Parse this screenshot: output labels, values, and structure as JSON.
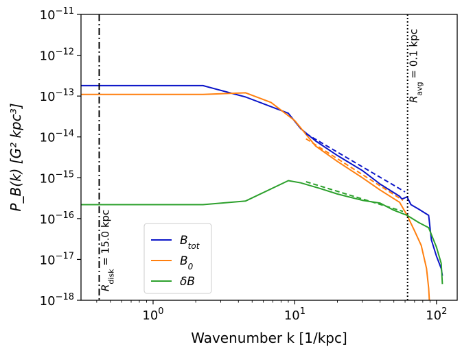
{
  "chart_data": {
    "type": "line",
    "title": "",
    "xlabel": "Wavenumber k [1/kpc]",
    "ylabel": "P_B(k) [G² kpc³]",
    "xscale": "log",
    "yscale": "log",
    "xlim": [
      0.31,
      140
    ],
    "ylim": [
      1e-18,
      1e-11
    ],
    "grid": false,
    "legend_position": "lower-left",
    "x_ticks": [
      {
        "value": 1,
        "base": "10",
        "exp": "0"
      },
      {
        "value": 10,
        "base": "10",
        "exp": "1"
      },
      {
        "value": 100,
        "base": "10",
        "exp": "2"
      }
    ],
    "y_ticks": [
      {
        "value": 1e-11,
        "base": "10",
        "exp": "−11"
      },
      {
        "value": 1e-12,
        "base": "10",
        "exp": "−12"
      },
      {
        "value": 1e-13,
        "base": "10",
        "exp": "−13"
      },
      {
        "value": 1e-14,
        "base": "10",
        "exp": "−14"
      },
      {
        "value": 1e-15,
        "base": "10",
        "exp": "−15"
      },
      {
        "value": 1e-16,
        "base": "10",
        "exp": "−16"
      },
      {
        "value": 1e-17,
        "base": "10",
        "exp": "−17"
      },
      {
        "value": 1e-18,
        "base": "10",
        "exp": "−18"
      }
    ],
    "series": [
      {
        "name": "B_tot",
        "label_main": "B",
        "label_sub": "tot",
        "color": "#0a14c8",
        "x": [
          0.31,
          2.25,
          4.5,
          9.0,
          11.0,
          14.0,
          20.0,
          30.0,
          40.0,
          55.0,
          57.0,
          62.0,
          66.0,
          75.0,
          88.0,
          92.0,
          100.0,
          108.0,
          110.0
        ],
        "y": [
          1.8e-13,
          1.8e-13,
          9.5e-14,
          3.8e-14,
          1.6e-14,
          8e-15,
          3.5e-15,
          1.5e-15,
          7e-16,
          3.5e-16,
          3e-16,
          3.4e-16,
          2.2e-16,
          1.7e-16,
          1.2e-16,
          3e-17,
          1.2e-17,
          6e-18,
          4e-18
        ]
      },
      {
        "name": "B_0",
        "label_main": "B",
        "label_sub": "0",
        "color": "#ff7f0e",
        "x": [
          0.31,
          2.25,
          4.5,
          6.8,
          10.0,
          14.0,
          20.0,
          30.0,
          40.0,
          55.0,
          62.0,
          70.0,
          78.0,
          85.0,
          88.0,
          89.0
        ],
        "y": [
          1.1e-13,
          1.1e-13,
          1.2e-13,
          7e-14,
          2.5e-14,
          6e-15,
          2.5e-15,
          1e-15,
          5e-16,
          2.5e-16,
          1.2e-16,
          5e-17,
          2.2e-17,
          6e-18,
          2e-18,
          1e-18
        ]
      },
      {
        "name": "δB",
        "label_main": "δB",
        "label_sub": "",
        "color": "#2ca02c",
        "x": [
          0.31,
          2.25,
          4.5,
          9.0,
          11.0,
          15.0,
          20.0,
          30.0,
          40.0,
          50.0,
          62.0,
          75.0,
          88.0,
          100.0,
          108.0,
          110.0
        ],
        "y": [
          2.2e-16,
          2.2e-16,
          2.7e-16,
          8.5e-16,
          7.5e-16,
          5.5e-16,
          4e-16,
          2.8e-16,
          2.4e-16,
          1.6e-16,
          1.2e-16,
          8e-17,
          6e-17,
          2e-17,
          8e-18,
          2.5e-18
        ]
      }
    ],
    "fits": [
      {
        "series": "B_tot",
        "color": "#0a14c8",
        "x": [
          12.0,
          60.0
        ],
        "y": [
          1.2e-14,
          4.5e-16
        ]
      },
      {
        "series": "B_0",
        "color": "#ff7f0e",
        "x": [
          12.0,
          58.0
        ],
        "y": [
          9e-15,
          2.8e-16
        ]
      },
      {
        "series": "δB",
        "color": "#2ca02c",
        "x": [
          12.0,
          58.0
        ],
        "y": [
          8e-16,
          1.5e-16
        ]
      }
    ],
    "vlines": [
      {
        "name": "R_disk",
        "x": 0.4167,
        "style": "dashdot",
        "label_main": "R",
        "label_sub": "disk",
        "label_rest": " = 15.0 kpc"
      },
      {
        "name": "R_avg",
        "x": 62.5,
        "style": "dotted",
        "label_main": "R",
        "label_sub": "avg",
        "label_rest": " = 0.1 kpc"
      }
    ]
  }
}
